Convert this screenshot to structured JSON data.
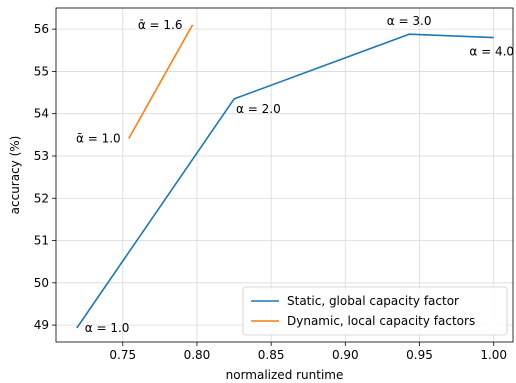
{
  "chart_data": {
    "type": "line",
    "title": "",
    "xlabel": "normalized runtime",
    "ylabel": "accuracy (%)",
    "xlim": [
      0.705,
      1.013
    ],
    "ylim": [
      48.6,
      56.5
    ],
    "xticks": [
      0.75,
      0.8,
      0.85,
      0.9,
      0.95,
      1.0
    ],
    "xtick_labels": [
      "0.75",
      "0.80",
      "0.85",
      "0.90",
      "0.95",
      "1.00"
    ],
    "yticks": [
      49,
      50,
      51,
      52,
      53,
      54,
      55,
      56
    ],
    "ytick_labels": [
      "49",
      "50",
      "51",
      "52",
      "53",
      "54",
      "55",
      "56"
    ],
    "grid": true,
    "legend_position": "lower-right",
    "series": [
      {
        "name": "Static, global capacity factor",
        "color": "#1f77b4",
        "x": [
          0.719,
          0.825,
          0.943,
          1.0
        ],
        "y": [
          48.93,
          54.35,
          55.88,
          55.8
        ]
      },
      {
        "name": "Dynamic, local capacity factors",
        "color": "#ff7f0e",
        "x": [
          0.754,
          0.797
        ],
        "y": [
          53.41,
          56.1
        ]
      }
    ],
    "annotations": [
      {
        "text": "α = 1.0",
        "x": 0.719,
        "y": 48.93,
        "dx": 8,
        "dy": 4,
        "anchor": "start"
      },
      {
        "text": "α = 2.0",
        "x": 0.825,
        "y": 54.35,
        "dx": 2,
        "dy": 14,
        "anchor": "start"
      },
      {
        "text": "α = 3.0",
        "x": 0.943,
        "y": 55.88,
        "dx": 0,
        "dy": -9,
        "anchor": "middle"
      },
      {
        "text": "α = 4.0",
        "x": 1.0,
        "y": 55.8,
        "dx": -2,
        "dy": 18,
        "anchor": "middle"
      },
      {
        "text": "ᾱ = 1.0",
        "x": 0.754,
        "y": 53.41,
        "dx": -8,
        "dy": 4,
        "anchor": "end"
      },
      {
        "text": "ᾱ = 1.6",
        "x": 0.797,
        "y": 56.1,
        "dx": -10,
        "dy": 4,
        "anchor": "end"
      }
    ]
  }
}
